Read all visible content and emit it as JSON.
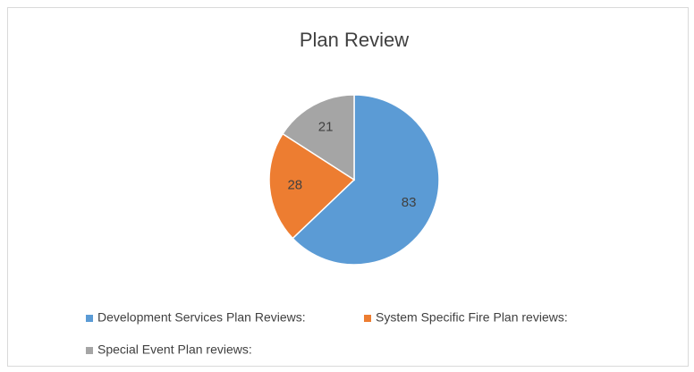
{
  "chart_data": {
    "type": "pie",
    "title": "Plan Review",
    "categories": [
      "Development Services Plan Reviews:",
      "System Specific Fire Plan reviews:",
      "Special Event Plan reviews:"
    ],
    "values": [
      83,
      28,
      21
    ],
    "colors": [
      "#5b9bd5",
      "#ed7d31",
      "#a5a5a5"
    ],
    "legend": "bottom"
  }
}
